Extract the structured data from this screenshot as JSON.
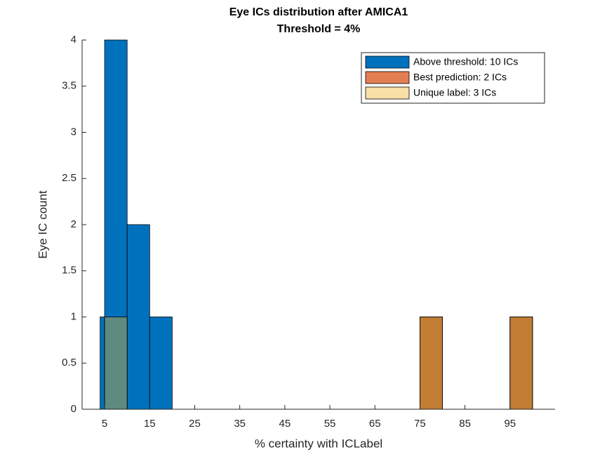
{
  "chart_data": {
    "type": "histogram",
    "title": [
      "Eye ICs distribution after AMICA1",
      "Threshold = 4%"
    ],
    "xlabel": "% certainty with ICLabel",
    "ylabel": "Eye IC count",
    "bins": [
      4,
      5,
      10,
      15,
      20,
      25,
      30,
      35,
      40,
      45,
      50,
      55,
      60,
      65,
      70,
      75,
      80,
      85,
      90,
      95,
      100
    ],
    "series": [
      {
        "name": "Above threshold: 10 ICs",
        "color": "#0072BD",
        "opacity": 1,
        "values": [
          1,
          4,
          2,
          1,
          0,
          0,
          0,
          0,
          0,
          0,
          0,
          0,
          0,
          0,
          0,
          1,
          0,
          0,
          0,
          1
        ]
      },
      {
        "name": "Best prediction: 2 ICs",
        "color": "#D95319",
        "opacity": 0.75,
        "values": [
          0,
          0,
          0,
          0,
          0,
          0,
          0,
          0,
          0,
          0,
          0,
          0,
          0,
          0,
          0,
          1,
          0,
          0,
          0,
          1
        ]
      },
      {
        "name": "Unique label: 3 ICs",
        "color": "#EDB120",
        "opacity": 0.4,
        "values": [
          0,
          1,
          0,
          0,
          0,
          0,
          0,
          0,
          0,
          0,
          0,
          0,
          0,
          0,
          0,
          1,
          0,
          0,
          0,
          1
        ]
      }
    ],
    "xlim": [
      0,
      105
    ],
    "xticks": [
      5,
      15,
      25,
      35,
      45,
      55,
      65,
      75,
      85,
      95
    ],
    "ylim": [
      0,
      4
    ],
    "yticks": [
      0,
      0.5,
      1,
      1.5,
      2,
      2.5,
      3,
      3.5,
      4
    ],
    "legend": "northeast"
  }
}
